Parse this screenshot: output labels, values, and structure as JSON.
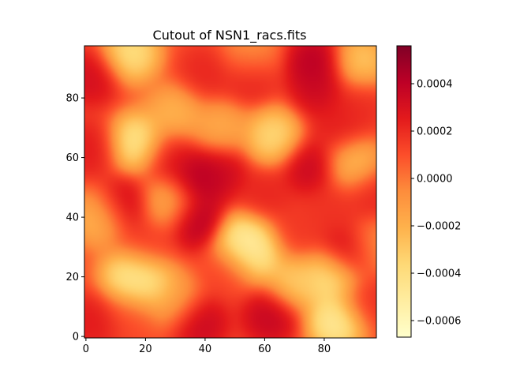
{
  "chart_data": {
    "type": "heatmap",
    "title": "Cutout of NSN1_racs.fits",
    "xlabel": "",
    "ylabel": "",
    "xlim": [
      -0.5,
      97.5
    ],
    "ylim": [
      -0.5,
      97.5
    ],
    "x_ticks": [
      0,
      20,
      40,
      60,
      80
    ],
    "y_ticks": [
      0,
      20,
      40,
      60,
      80
    ],
    "colormap": "YlOrRd",
    "colorbar": {
      "vmin": -0.00067,
      "vmax": 0.00056,
      "ticks": [
        -0.0006,
        -0.0004,
        -0.0002,
        0.0,
        0.0002,
        0.0004
      ],
      "tick_labels": [
        "−0.0006",
        "−0.0004",
        "−0.0002",
        "0.0000",
        "0.0002",
        "0.0004"
      ]
    },
    "grid": false,
    "legend": "none",
    "features": [
      {
        "x": 37,
        "y": 53,
        "value": 0.00052
      },
      {
        "x": 45,
        "y": 55,
        "value": 0.0004
      },
      {
        "x": 37,
        "y": 39,
        "value": 0.00052
      },
      {
        "x": 12,
        "y": 44,
        "value": 0.00043
      },
      {
        "x": 77,
        "y": 92,
        "value": 0.0005
      },
      {
        "x": 78,
        "y": 83,
        "value": 0.0004
      },
      {
        "x": 75,
        "y": 57,
        "value": 0.00043
      },
      {
        "x": 88,
        "y": 28,
        "value": 0.00046
      },
      {
        "x": 62,
        "y": 7,
        "value": 0.00045
      },
      {
        "x": 38,
        "y": 5,
        "value": 0.00044
      },
      {
        "x": 2,
        "y": 87,
        "value": 0.00038
      },
      {
        "x": 2,
        "y": 63,
        "value": 0.0003
      },
      {
        "x": 28,
        "y": 60,
        "value": 0.0003
      },
      {
        "x": 55,
        "y": 87,
        "value": 0.00028
      },
      {
        "x": 40,
        "y": 88,
        "value": 0.00025
      },
      {
        "x": 60,
        "y": 47,
        "value": 0.00025
      },
      {
        "x": 96,
        "y": 48,
        "value": 0.00025
      },
      {
        "x": 85,
        "y": 70,
        "value": 0.00028
      },
      {
        "x": 92,
        "y": 78,
        "value": 0.00022
      },
      {
        "x": 2,
        "y": 5,
        "value": 0.0003
      },
      {
        "x": 20,
        "y": 30,
        "value": 0.00018
      },
      {
        "x": 70,
        "y": 35,
        "value": 0.00018
      },
      {
        "x": 82,
        "y": 42,
        "value": 0.0002
      },
      {
        "x": 94,
        "y": 12,
        "value": 0.00022
      },
      {
        "x": 48,
        "y": 22,
        "value": 0.00015
      },
      {
        "x": 15,
        "y": 8,
        "value": 0.00012
      },
      {
        "x": 17,
        "y": 65,
        "value": -0.00062
      },
      {
        "x": 15,
        "y": 20,
        "value": -0.0006
      },
      {
        "x": 20,
        "y": 18,
        "value": -0.00055
      },
      {
        "x": 53,
        "y": 32,
        "value": -0.00066
      },
      {
        "x": 57,
        "y": 28,
        "value": -0.0006
      },
      {
        "x": 83,
        "y": 20,
        "value": -0.00058
      },
      {
        "x": 84,
        "y": 5,
        "value": -0.00067
      },
      {
        "x": 15,
        "y": 95,
        "value": -0.00055
      },
      {
        "x": 63,
        "y": 67,
        "value": -0.0005
      },
      {
        "x": 92,
        "y": 92,
        "value": -0.0004
      },
      {
        "x": 90,
        "y": 58,
        "value": -0.00035
      },
      {
        "x": 30,
        "y": 75,
        "value": -0.0003
      },
      {
        "x": 5,
        "y": 40,
        "value": -0.00035
      },
      {
        "x": 45,
        "y": 70,
        "value": -0.00025
      },
      {
        "x": 70,
        "y": 18,
        "value": -0.00042
      },
      {
        "x": 28,
        "y": 45,
        "value": -0.00028
      },
      {
        "x": 55,
        "y": 95,
        "value": -0.00015
      },
      {
        "x": 96,
        "y": 30,
        "value": -0.00015
      },
      {
        "x": 30,
        "y": 12,
        "value": -0.00022
      }
    ]
  }
}
